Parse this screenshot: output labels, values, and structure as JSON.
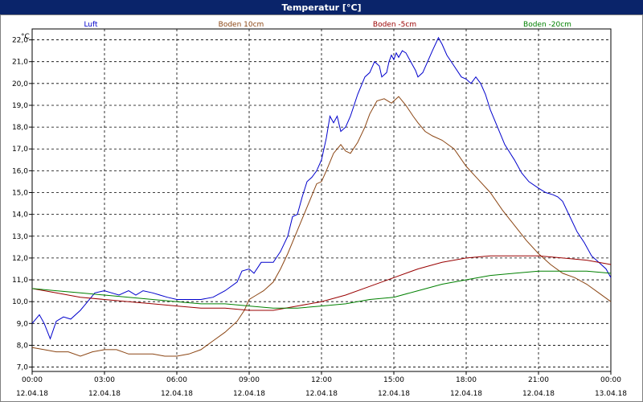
{
  "window": {
    "title": "Temperatur [°C]"
  },
  "chart_data": {
    "type": "line",
    "title": "Temperatur [°C]",
    "ylabel": "°C",
    "xlabel": "",
    "ylim": [
      6.8,
      22.5
    ],
    "xlim": [
      0,
      24
    ],
    "grid": true,
    "legend_position": "top",
    "y_ticks": [
      "7,0",
      "8,0",
      "9,0",
      "10,0",
      "11,0",
      "12,0",
      "13,0",
      "14,0",
      "15,0",
      "16,0",
      "17,0",
      "18,0",
      "19,0",
      "20,0",
      "21,0",
      "22,0"
    ],
    "x_ticks": [
      {
        "time": "00:00",
        "date": "12.04.18"
      },
      {
        "time": "03:00",
        "date": "12.04.18"
      },
      {
        "time": "06:00",
        "date": "12.04.18"
      },
      {
        "time": "09:00",
        "date": "12.04.18"
      },
      {
        "time": "12:00",
        "date": "12.04.18"
      },
      {
        "time": "15:00",
        "date": "12.04.18"
      },
      {
        "time": "18:00",
        "date": "12.04.18"
      },
      {
        "time": "21:00",
        "date": "12.04.18"
      },
      {
        "time": "00:00",
        "date": "13.04.18"
      }
    ],
    "series": [
      {
        "name": "Luft",
        "color": "#0000cc",
        "points": [
          [
            0,
            9.0
          ],
          [
            0.3,
            9.4
          ],
          [
            0.5,
            9.0
          ],
          [
            0.75,
            8.3
          ],
          [
            1.0,
            9.1
          ],
          [
            1.3,
            9.3
          ],
          [
            1.6,
            9.2
          ],
          [
            2.0,
            9.6
          ],
          [
            2.3,
            10.0
          ],
          [
            2.6,
            10.4
          ],
          [
            3.0,
            10.5
          ],
          [
            3.3,
            10.4
          ],
          [
            3.6,
            10.3
          ],
          [
            4.0,
            10.5
          ],
          [
            4.3,
            10.3
          ],
          [
            4.6,
            10.5
          ],
          [
            5.0,
            10.4
          ],
          [
            5.3,
            10.3
          ],
          [
            5.6,
            10.2
          ],
          [
            6.0,
            10.1
          ],
          [
            6.5,
            10.1
          ],
          [
            7.0,
            10.1
          ],
          [
            7.5,
            10.2
          ],
          [
            8.0,
            10.5
          ],
          [
            8.5,
            10.9
          ],
          [
            8.7,
            11.4
          ],
          [
            9.0,
            11.5
          ],
          [
            9.2,
            11.3
          ],
          [
            9.5,
            11.8
          ],
          [
            10.0,
            11.8
          ],
          [
            10.3,
            12.3
          ],
          [
            10.6,
            13.0
          ],
          [
            10.8,
            13.9
          ],
          [
            11.0,
            14.0
          ],
          [
            11.2,
            14.8
          ],
          [
            11.4,
            15.5
          ],
          [
            11.6,
            15.7
          ],
          [
            11.8,
            16.0
          ],
          [
            12.0,
            16.5
          ],
          [
            12.2,
            17.5
          ],
          [
            12.35,
            18.5
          ],
          [
            12.5,
            18.2
          ],
          [
            12.65,
            18.5
          ],
          [
            12.8,
            17.8
          ],
          [
            13.0,
            18.0
          ],
          [
            13.2,
            18.5
          ],
          [
            13.5,
            19.5
          ],
          [
            13.8,
            20.3
          ],
          [
            14.0,
            20.5
          ],
          [
            14.2,
            21.0
          ],
          [
            14.4,
            20.8
          ],
          [
            14.5,
            20.3
          ],
          [
            14.7,
            20.5
          ],
          [
            14.8,
            21.0
          ],
          [
            14.9,
            21.3
          ],
          [
            15.0,
            21.1
          ],
          [
            15.1,
            21.4
          ],
          [
            15.2,
            21.2
          ],
          [
            15.35,
            21.5
          ],
          [
            15.5,
            21.4
          ],
          [
            15.7,
            21.0
          ],
          [
            15.9,
            20.6
          ],
          [
            16.0,
            20.3
          ],
          [
            16.2,
            20.5
          ],
          [
            16.4,
            21.0
          ],
          [
            16.6,
            21.5
          ],
          [
            16.85,
            22.1
          ],
          [
            17.0,
            21.8
          ],
          [
            17.2,
            21.3
          ],
          [
            17.5,
            20.8
          ],
          [
            17.8,
            20.3
          ],
          [
            18.0,
            20.2
          ],
          [
            18.2,
            20.0
          ],
          [
            18.4,
            20.3
          ],
          [
            18.6,
            20.0
          ],
          [
            18.8,
            19.5
          ],
          [
            19.0,
            18.8
          ],
          [
            19.3,
            18.0
          ],
          [
            19.6,
            17.2
          ],
          [
            20.0,
            16.5
          ],
          [
            20.3,
            15.9
          ],
          [
            20.6,
            15.5
          ],
          [
            21.0,
            15.2
          ],
          [
            21.3,
            15.0
          ],
          [
            21.6,
            14.9
          ],
          [
            21.8,
            14.8
          ],
          [
            22.0,
            14.6
          ],
          [
            22.3,
            13.9
          ],
          [
            22.6,
            13.2
          ],
          [
            22.9,
            12.7
          ],
          [
            23.2,
            12.1
          ],
          [
            23.5,
            11.8
          ],
          [
            23.8,
            11.5
          ],
          [
            24.0,
            11.1
          ]
        ]
      },
      {
        "name": "Boden 10cm",
        "color": "#8b4513",
        "points": [
          [
            0,
            7.9
          ],
          [
            0.5,
            7.8
          ],
          [
            1.0,
            7.7
          ],
          [
            1.5,
            7.7
          ],
          [
            2.0,
            7.5
          ],
          [
            2.5,
            7.7
          ],
          [
            3.0,
            7.8
          ],
          [
            3.5,
            7.8
          ],
          [
            4.0,
            7.6
          ],
          [
            4.5,
            7.6
          ],
          [
            5.0,
            7.6
          ],
          [
            5.5,
            7.5
          ],
          [
            6.0,
            7.5
          ],
          [
            6.5,
            7.6
          ],
          [
            7.0,
            7.8
          ],
          [
            7.5,
            8.2
          ],
          [
            8.0,
            8.6
          ],
          [
            8.5,
            9.1
          ],
          [
            8.8,
            9.6
          ],
          [
            9.0,
            10.1
          ],
          [
            9.3,
            10.3
          ],
          [
            9.6,
            10.5
          ],
          [
            10.0,
            10.9
          ],
          [
            10.3,
            11.5
          ],
          [
            10.6,
            12.2
          ],
          [
            10.9,
            13.0
          ],
          [
            11.2,
            13.8
          ],
          [
            11.5,
            14.6
          ],
          [
            11.8,
            15.4
          ],
          [
            12.0,
            15.5
          ],
          [
            12.2,
            16.0
          ],
          [
            12.5,
            16.8
          ],
          [
            12.8,
            17.2
          ],
          [
            13.0,
            16.9
          ],
          [
            13.2,
            16.8
          ],
          [
            13.5,
            17.3
          ],
          [
            13.8,
            18.0
          ],
          [
            14.0,
            18.6
          ],
          [
            14.3,
            19.2
          ],
          [
            14.6,
            19.3
          ],
          [
            14.9,
            19.1
          ],
          [
            15.2,
            19.4
          ],
          [
            15.5,
            19.0
          ],
          [
            15.8,
            18.5
          ],
          [
            16.0,
            18.2
          ],
          [
            16.3,
            17.8
          ],
          [
            16.6,
            17.6
          ],
          [
            17.0,
            17.4
          ],
          [
            17.5,
            17.0
          ],
          [
            18.0,
            16.2
          ],
          [
            18.5,
            15.6
          ],
          [
            19.0,
            15.0
          ],
          [
            19.5,
            14.2
          ],
          [
            20.0,
            13.5
          ],
          [
            20.5,
            12.8
          ],
          [
            21.0,
            12.2
          ],
          [
            21.5,
            11.7
          ],
          [
            22.0,
            11.3
          ],
          [
            22.5,
            11.1
          ],
          [
            23.0,
            10.8
          ],
          [
            23.5,
            10.4
          ],
          [
            24.0,
            10.0
          ]
        ]
      },
      {
        "name": "Boden -5cm",
        "color": "#990000",
        "points": [
          [
            0,
            10.6
          ],
          [
            1.0,
            10.4
          ],
          [
            2.0,
            10.2
          ],
          [
            3.0,
            10.1
          ],
          [
            4.0,
            10.0
          ],
          [
            5.0,
            9.9
          ],
          [
            6.0,
            9.8
          ],
          [
            7.0,
            9.7
          ],
          [
            8.0,
            9.7
          ],
          [
            9.0,
            9.6
          ],
          [
            10.0,
            9.6
          ],
          [
            11.0,
            9.8
          ],
          [
            12.0,
            10.0
          ],
          [
            13.0,
            10.3
          ],
          [
            14.0,
            10.7
          ],
          [
            15.0,
            11.1
          ],
          [
            16.0,
            11.5
          ],
          [
            17.0,
            11.8
          ],
          [
            18.0,
            12.0
          ],
          [
            19.0,
            12.1
          ],
          [
            20.0,
            12.1
          ],
          [
            21.0,
            12.1
          ],
          [
            22.0,
            12.0
          ],
          [
            23.0,
            11.9
          ],
          [
            24.0,
            11.7
          ]
        ]
      },
      {
        "name": "Boden -20cm",
        "color": "#008000",
        "points": [
          [
            0,
            10.6
          ],
          [
            1.0,
            10.5
          ],
          [
            2.0,
            10.4
          ],
          [
            3.0,
            10.3
          ],
          [
            4.0,
            10.2
          ],
          [
            5.0,
            10.1
          ],
          [
            6.0,
            10.0
          ],
          [
            7.0,
            9.9
          ],
          [
            8.0,
            9.9
          ],
          [
            9.0,
            9.8
          ],
          [
            10.0,
            9.7
          ],
          [
            11.0,
            9.7
          ],
          [
            12.0,
            9.8
          ],
          [
            13.0,
            9.9
          ],
          [
            14.0,
            10.1
          ],
          [
            15.0,
            10.2
          ],
          [
            16.0,
            10.5
          ],
          [
            17.0,
            10.8
          ],
          [
            18.0,
            11.0
          ],
          [
            19.0,
            11.2
          ],
          [
            20.0,
            11.3
          ],
          [
            21.0,
            11.4
          ],
          [
            22.0,
            11.4
          ],
          [
            23.0,
            11.4
          ],
          [
            24.0,
            11.3
          ]
        ]
      }
    ]
  }
}
